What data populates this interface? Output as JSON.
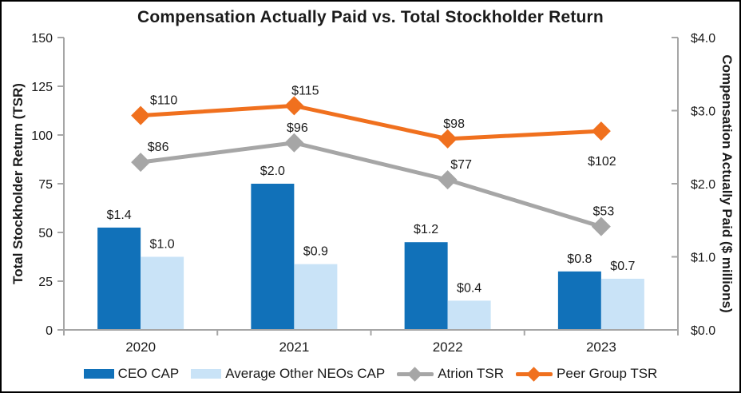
{
  "chart_data": {
    "type": "combo-bar-line",
    "title": "Compensation Actually Paid vs. Total Stockholder Return",
    "categories": [
      "2020",
      "2021",
      "2022",
      "2023"
    ],
    "left_axis": {
      "label": "Total Stockholder Return (TSR)",
      "min": 0,
      "max": 150,
      "tick_values": [
        0,
        25,
        50,
        75,
        100,
        125,
        150
      ],
      "tick_labels": [
        "0",
        "25",
        "50",
        "75",
        "100",
        "125",
        "150"
      ]
    },
    "right_axis": {
      "label": "Compensation Actually Paid ($ millions)",
      "min": 0.0,
      "max": 4.0,
      "tick_values": [
        0,
        1,
        2,
        3,
        4
      ],
      "tick_labels": [
        "$0.0",
        "$1.0",
        "$2.0",
        "$3.0",
        "$4.0"
      ]
    },
    "series": [
      {
        "name": "CEO CAP",
        "type": "bar",
        "axis": "right",
        "color": "#1171B9",
        "values": [
          1.4,
          2.0,
          1.2,
          0.8
        ],
        "point_labels": [
          "$1.4",
          "$2.0",
          "$1.2",
          "$0.8"
        ]
      },
      {
        "name": "Average Other NEOs CAP",
        "type": "bar",
        "axis": "right",
        "color": "#C9E3F7",
        "values": [
          1.0,
          0.9,
          0.4,
          0.7
        ],
        "point_labels": [
          "$1.0",
          "$0.9",
          "$0.4",
          "$0.7"
        ]
      },
      {
        "name": "Atrion TSR",
        "type": "line",
        "axis": "left",
        "color": "#A6A6A6",
        "values": [
          86,
          96,
          77,
          53
        ],
        "point_labels": [
          "$86",
          "$96",
          "$77",
          "$53"
        ],
        "label_dx": [
          22,
          4,
          17,
          3
        ],
        "label_side": [
          "above",
          "above",
          "above",
          "above"
        ]
      },
      {
        "name": "Peer Group TSR",
        "type": "line",
        "axis": "left",
        "color": "#F0701E",
        "values": [
          110,
          115,
          98,
          102
        ],
        "point_labels": [
          "$110",
          "$115",
          "$98",
          "$102"
        ],
        "label_dx": [
          29,
          14,
          8,
          1
        ],
        "label_side": [
          "above",
          "above",
          "above",
          "below"
        ]
      }
    ],
    "legend_position": "bottom",
    "grid": false,
    "axis_line_color": "#A6A6A6",
    "text_color": "#1a1a1a"
  }
}
